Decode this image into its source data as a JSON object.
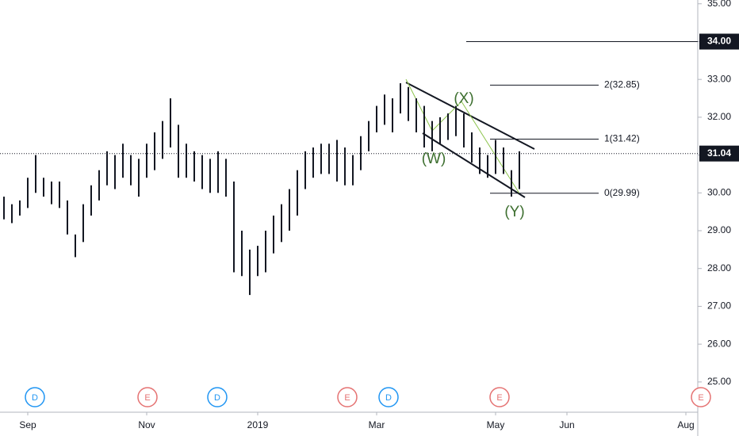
{
  "chart_data": {
    "type": "ohlc",
    "categories": [
      null,
      null,
      null,
      "Sep",
      null,
      null,
      null,
      null,
      null,
      null,
      null,
      null,
      null,
      null,
      null,
      null,
      null,
      null,
      "Nov",
      null,
      null,
      null,
      null,
      null,
      null,
      null,
      null,
      null,
      null,
      null,
      null,
      null,
      "2019",
      null,
      null,
      null,
      null,
      null,
      null,
      null,
      null,
      null,
      null,
      null,
      null,
      null,
      null,
      "Mar",
      null,
      null,
      null,
      null,
      null,
      null,
      null,
      null,
      null,
      null,
      null,
      null,
      null,
      null,
      "May",
      null,
      null,
      null,
      null,
      null,
      null,
      null,
      null,
      "Jun",
      null,
      null,
      null,
      null,
      null,
      null,
      null,
      null,
      null,
      null,
      null,
      null,
      null,
      null,
      "Aug",
      null
    ],
    "series": [
      {
        "name": "high",
        "color": "#131722",
        "values": [
          29.9,
          29.7,
          29.8,
          30.4,
          31.0,
          30.4,
          30.3,
          30.3,
          29.8,
          28.9,
          29.7,
          30.2,
          30.6,
          31.1,
          31.0,
          31.3,
          31.0,
          30.9,
          31.3,
          31.6,
          31.9,
          32.5,
          31.8,
          31.3,
          31.1,
          31.0,
          30.9,
          31.1,
          30.9,
          30.3,
          29.0,
          28.5,
          28.6,
          29.0,
          29.4,
          29.7,
          30.1,
          30.6,
          31.1,
          31.2,
          31.3,
          31.3,
          31.4,
          31.2,
          31.0,
          31.5,
          31.9,
          32.3,
          32.6,
          32.5,
          32.9,
          32.8,
          32.5,
          32.3,
          31.9,
          32.0,
          32.1,
          32.3,
          32.1,
          31.6,
          31.2,
          31.0,
          31.4,
          31.2,
          30.6,
          31.1,
          null,
          null,
          null,
          null,
          null,
          null,
          null,
          null,
          null,
          null,
          null,
          null,
          null,
          null,
          null,
          null,
          null,
          null,
          null,
          null,
          null,
          null
        ]
      },
      {
        "name": "low",
        "color": "#131722",
        "values": [
          29.3,
          29.2,
          29.4,
          29.6,
          30.0,
          29.9,
          29.7,
          29.6,
          28.9,
          28.3,
          28.7,
          29.4,
          29.8,
          30.2,
          30.1,
          30.4,
          30.2,
          29.9,
          30.4,
          30.6,
          30.9,
          31.2,
          30.4,
          30.4,
          30.3,
          30.1,
          30.0,
          30.0,
          29.9,
          27.9,
          27.8,
          27.3,
          27.8,
          27.9,
          28.4,
          28.7,
          29.0,
          29.4,
          30.1,
          30.4,
          30.5,
          30.5,
          30.3,
          30.2,
          30.2,
          30.6,
          31.1,
          31.6,
          31.8,
          31.6,
          32.1,
          31.9,
          31.6,
          31.2,
          31.1,
          31.3,
          31.4,
          31.5,
          31.2,
          30.8,
          30.5,
          30.4,
          30.5,
          30.5,
          29.9,
          30.1,
          null,
          null,
          null,
          null,
          null,
          null,
          null,
          null,
          null,
          null,
          null,
          null,
          null,
          null,
          null,
          null,
          null,
          null,
          null,
          null,
          null,
          null
        ]
      }
    ],
    "ylim": [
      24.2,
      35.1
    ],
    "yticks": [
      {
        "value": 25,
        "label": "25.00"
      },
      {
        "value": 26,
        "label": "26.00"
      },
      {
        "value": 27,
        "label": "27.00"
      },
      {
        "value": 28,
        "label": "28.00"
      },
      {
        "value": 29,
        "label": "29.00"
      },
      {
        "value": 30,
        "label": "30.00"
      },
      {
        "value": 31,
        "label": "31.00"
      },
      {
        "value": 32,
        "label": "32.00"
      },
      {
        "value": 33,
        "label": "33.00"
      },
      {
        "value": 34,
        "label": "34.00"
      },
      {
        "value": 35,
        "label": "35.00"
      }
    ],
    "fib_levels": [
      {
        "value": 32.85,
        "label": "2(32.85)"
      },
      {
        "value": 31.42,
        "label": "1(31.42)"
      },
      {
        "value": 29.99,
        "label": "0(29.99)"
      }
    ],
    "target_line": {
      "value": 34,
      "label": "34.00"
    },
    "last_price": {
      "value": 31.04,
      "label": "31.04"
    },
    "wave_labels": [
      "(W)",
      "(X)",
      "(Y)"
    ],
    "events": [
      "D",
      "E",
      "D",
      "E",
      "D",
      "E",
      "E"
    ]
  }
}
